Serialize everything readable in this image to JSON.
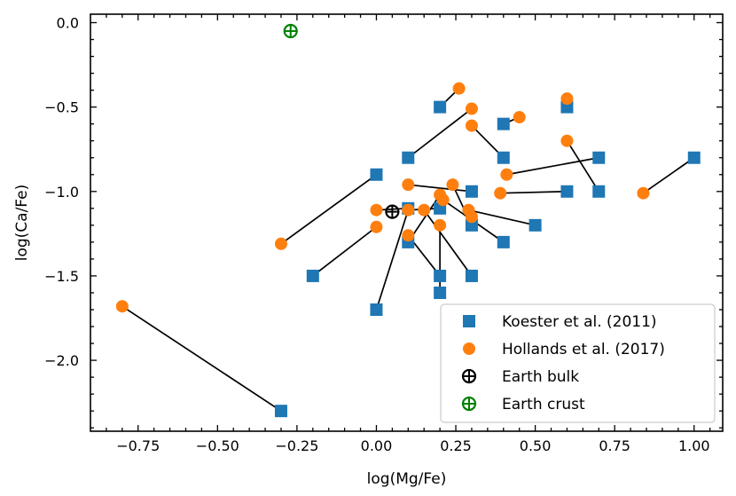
{
  "chart_data": {
    "type": "scatter",
    "xlabel": "log(Mg/Fe)",
    "ylabel": "log(Ca/Fe)",
    "xlim": [
      -0.9,
      1.09
    ],
    "ylim": [
      -2.42,
      0.05
    ],
    "xticks": [
      -0.75,
      -0.5,
      -0.25,
      0.0,
      0.25,
      0.5,
      0.75,
      1.0
    ],
    "xtick_labels": [
      "−0.75",
      "−0.50",
      "−0.25",
      "0.00",
      "0.25",
      "0.50",
      "0.75",
      "1.00"
    ],
    "yticks": [
      0.0,
      -0.5,
      -1.0,
      -1.5,
      -2.0
    ],
    "ytick_labels": [
      "0.0",
      "−0.5",
      "−1.0",
      "−1.5",
      "−2.0"
    ],
    "legend_position": "bottom-right",
    "series": [
      {
        "name": "Koester et al. (2011)",
        "marker": "square",
        "color": "#1f77b4",
        "points": [
          [
            0.2,
            -0.5
          ],
          [
            0.4,
            -0.6
          ],
          [
            0.6,
            -0.5
          ],
          [
            0.1,
            -0.8
          ],
          [
            0.4,
            -0.8
          ],
          [
            0.7,
            -0.8
          ],
          [
            1.0,
            -0.8
          ],
          [
            0.0,
            -0.9
          ],
          [
            0.3,
            -1.0
          ],
          [
            0.6,
            -1.0
          ],
          [
            0.7,
            -1.0
          ],
          [
            0.1,
            -1.1
          ],
          [
            0.2,
            -1.1
          ],
          [
            0.3,
            -1.2
          ],
          [
            0.5,
            -1.2
          ],
          [
            0.1,
            -1.3
          ],
          [
            0.4,
            -1.3
          ],
          [
            -0.2,
            -1.5
          ],
          [
            0.2,
            -1.5
          ],
          [
            0.3,
            -1.5
          ],
          [
            0.2,
            -1.6
          ],
          [
            0.0,
            -1.7
          ],
          [
            -0.3,
            -2.3
          ]
        ]
      },
      {
        "name": "Hollands et al. (2017)",
        "marker": "circle",
        "color": "#ff7f0e",
        "points": [
          [
            0.26,
            -0.39
          ],
          [
            0.6,
            -0.45
          ],
          [
            0.3,
            -0.51
          ],
          [
            0.45,
            -0.56
          ],
          [
            0.3,
            -0.61
          ],
          [
            0.6,
            -0.7
          ],
          [
            0.41,
            -0.9
          ],
          [
            0.1,
            -0.96
          ],
          [
            0.24,
            -0.96
          ],
          [
            0.39,
            -1.01
          ],
          [
            0.84,
            -1.01
          ],
          [
            0.2,
            -1.02
          ],
          [
            0.21,
            -1.05
          ],
          [
            0.0,
            -1.11
          ],
          [
            0.1,
            -1.11
          ],
          [
            0.15,
            -1.11
          ],
          [
            0.29,
            -1.11
          ],
          [
            0.3,
            -1.15
          ],
          [
            0.0,
            -1.21
          ],
          [
            0.2,
            -1.2
          ],
          [
            0.1,
            -1.26
          ],
          [
            -0.3,
            -1.31
          ],
          [
            -0.8,
            -1.68
          ]
        ]
      },
      {
        "name": "Earth bulk",
        "marker": "circle-plus",
        "color": "#000000",
        "points": [
          [
            0.05,
            -1.12
          ]
        ]
      },
      {
        "name": "Earth crust",
        "marker": "circle-plus",
        "color": "#008000",
        "points": [
          [
            -0.27,
            -0.05
          ]
        ]
      }
    ],
    "connections": [
      [
        [
          0.2,
          -0.5
        ],
        [
          0.26,
          -0.39
        ]
      ],
      [
        [
          0.4,
          -0.6
        ],
        [
          0.45,
          -0.56
        ]
      ],
      [
        [
          0.4,
          -0.8
        ],
        [
          0.3,
          -0.61
        ]
      ],
      [
        [
          0.6,
          -0.5
        ],
        [
          0.6,
          -0.45
        ]
      ],
      [
        [
          0.1,
          -0.8
        ],
        [
          0.3,
          -0.51
        ]
      ],
      [
        [
          0.7,
          -0.8
        ],
        [
          0.41,
          -0.9
        ]
      ],
      [
        [
          1.0,
          -0.8
        ],
        [
          0.84,
          -1.01
        ]
      ],
      [
        [
          0.7,
          -1.0
        ],
        [
          0.6,
          -0.7
        ]
      ],
      [
        [
          0.6,
          -1.0
        ],
        [
          0.39,
          -1.01
        ]
      ],
      [
        [
          0.0,
          -0.9
        ],
        [
          -0.3,
          -1.31
        ]
      ],
      [
        [
          0.3,
          -1.0
        ],
        [
          0.1,
          -0.96
        ]
      ],
      [
        [
          0.1,
          -1.1
        ],
        [
          0.0,
          -1.11
        ]
      ],
      [
        [
          0.2,
          -1.1
        ],
        [
          0.1,
          -1.11
        ]
      ],
      [
        [
          0.3,
          -1.2
        ],
        [
          0.24,
          -0.96
        ]
      ],
      [
        [
          0.5,
          -1.2
        ],
        [
          0.29,
          -1.11
        ]
      ],
      [
        [
          0.4,
          -1.3
        ],
        [
          0.21,
          -1.05
        ]
      ],
      [
        [
          0.1,
          -1.3
        ],
        [
          0.2,
          -1.02
        ]
      ],
      [
        [
          -0.2,
          -1.5
        ],
        [
          0.0,
          -1.21
        ]
      ],
      [
        [
          0.2,
          -1.5
        ],
        [
          0.1,
          -1.26
        ]
      ],
      [
        [
          0.3,
          -1.5
        ],
        [
          0.15,
          -1.11
        ]
      ],
      [
        [
          0.2,
          -1.6
        ],
        [
          0.2,
          -1.2
        ]
      ],
      [
        [
          0.0,
          -1.7
        ],
        [
          0.1,
          -1.11
        ]
      ],
      [
        [
          -0.3,
          -2.3
        ],
        [
          -0.8,
          -1.68
        ]
      ]
    ]
  }
}
